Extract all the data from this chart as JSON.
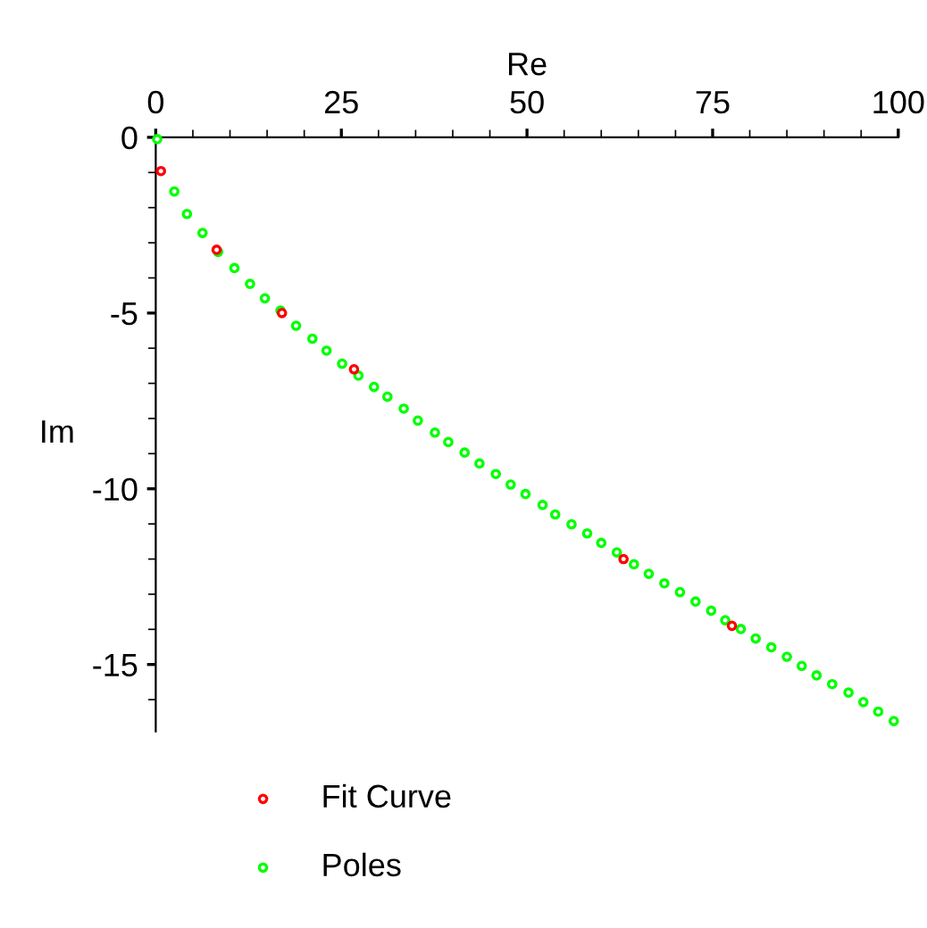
{
  "chart_data": {
    "type": "scatter",
    "xlabel": "Re",
    "ylabel": "Im",
    "xlim": [
      0,
      100
    ],
    "ylim": [
      -16.9,
      0
    ],
    "xticks": [
      0,
      25,
      50,
      75,
      100
    ],
    "yticks": [
      {
        "value": 0,
        "label": "0"
      },
      {
        "value": -5,
        "label": "-5"
      },
      {
        "value": -10,
        "label": "-10"
      },
      {
        "value": -15,
        "label": "-15"
      }
    ],
    "marker": "circle",
    "grid": false,
    "legend": "bottom",
    "series": [
      {
        "name": "Fit Curve",
        "color": "#ff0000",
        "x": [
          0.7,
          8.2,
          17.0,
          26.7,
          63.0,
          77.6
        ],
        "values": [
          -0.96,
          -3.2,
          -5.0,
          -6.6,
          -12.0,
          -13.9
        ]
      },
      {
        "name": "Poles",
        "color": "#00ff00",
        "x": [
          0.2,
          2.5,
          4.2,
          6.3,
          8.4,
          10.6,
          12.7,
          14.7,
          16.8,
          18.9,
          21.1,
          23.0,
          25.1,
          27.3,
          29.4,
          31.2,
          33.4,
          35.3,
          37.6,
          39.4,
          41.6,
          43.6,
          45.8,
          47.8,
          49.8,
          52.1,
          53.8,
          56.0,
          58.1,
          60.0,
          62.1,
          64.4,
          66.4,
          68.5,
          70.6,
          72.7,
          74.8,
          76.7,
          78.8,
          80.8,
          82.9,
          85.0,
          87.0,
          89.0,
          91.1,
          93.3,
          95.3,
          97.3,
          99.4
        ],
        "values": [
          -0.05,
          -1.54,
          -2.18,
          -2.72,
          -3.26,
          -3.72,
          -4.17,
          -4.58,
          -4.93,
          -5.36,
          -5.73,
          -6.07,
          -6.44,
          -6.78,
          -7.1,
          -7.38,
          -7.72,
          -8.06,
          -8.4,
          -8.67,
          -8.97,
          -9.28,
          -9.58,
          -9.88,
          -10.15,
          -10.46,
          -10.73,
          -11.01,
          -11.27,
          -11.54,
          -11.81,
          -12.15,
          -12.42,
          -12.69,
          -12.94,
          -13.21,
          -13.47,
          -13.74,
          -13.99,
          -14.26,
          -14.51,
          -14.78,
          -15.04,
          -15.31,
          -15.56,
          -15.8,
          -16.07,
          -16.34,
          -16.61
        ]
      }
    ]
  }
}
